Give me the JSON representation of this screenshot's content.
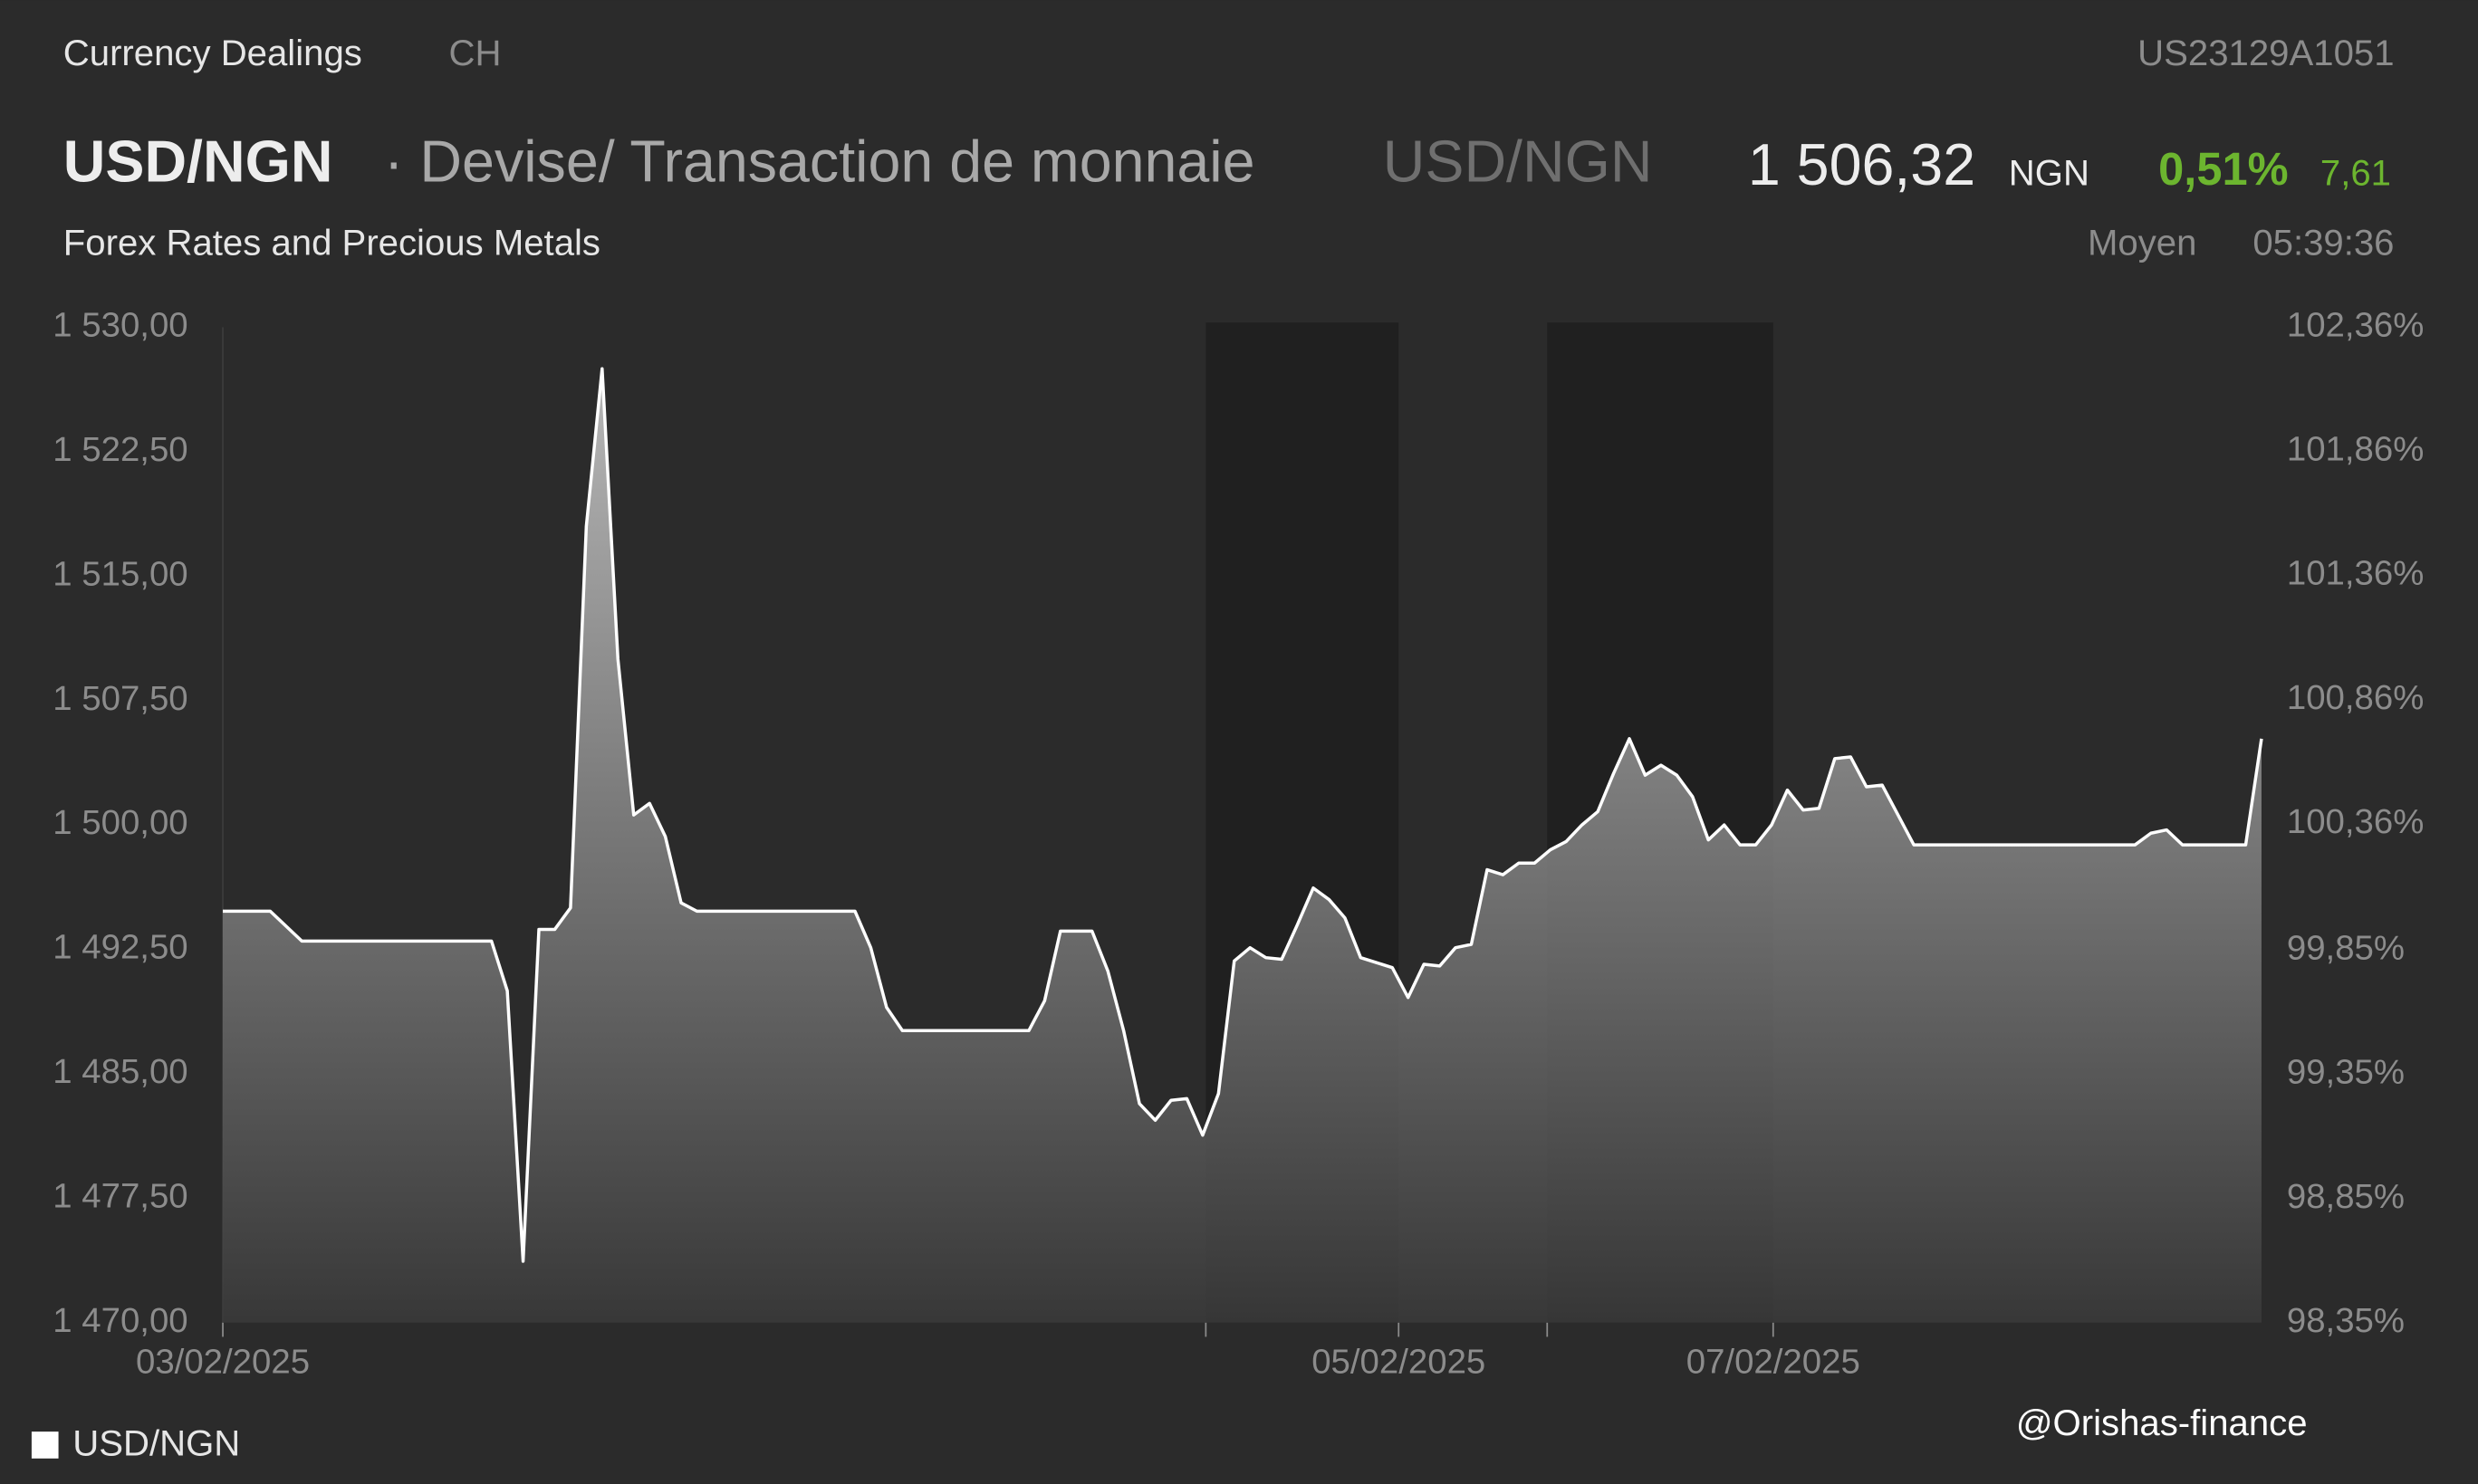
{
  "header": {
    "section": "Currency Dealings",
    "country": "CH",
    "isin": "US23129A1051",
    "symbol": "USD/NGN",
    "description": "· Devise/ Transaction de monnaie",
    "symbol_alt": "USD/NGN",
    "price": "1 506,32",
    "currency": "NGN",
    "change_pct": "0,51%",
    "change": "7,61",
    "subtitle": "Forex Rates and Precious Metals",
    "price_type": "Moyen",
    "time": "05:39:36"
  },
  "watermark": "@Orishas-finance",
  "chart_data": {
    "type": "area",
    "series": [
      {
        "name": "USD/NGN",
        "color": "#ffffff",
        "values": [
          1494.8,
          1494.8,
          1494.8,
          1494.8,
          1493.9,
          1493.0,
          1493.0,
          1493.0,
          1493.0,
          1493.0,
          1493.0,
          1493.0,
          1493.0,
          1493.0,
          1493.0,
          1493.0,
          1493.0,
          1493.0,
          1490.0,
          1473.7,
          1493.7,
          1493.7,
          1495.0,
          1518.0,
          1527.5,
          1510.0,
          1500.6,
          1501.3,
          1499.3,
          1495.3,
          1494.8,
          1494.8,
          1494.8,
          1494.8,
          1494.8,
          1494.8,
          1494.8,
          1494.8,
          1494.8,
          1494.8,
          1494.8,
          1492.6,
          1489.0,
          1487.6,
          1487.6,
          1487.6,
          1487.6,
          1487.6,
          1487.6,
          1487.6,
          1487.6,
          1487.6,
          1489.4,
          1493.6,
          1493.6,
          1493.6,
          1491.2,
          1487.6,
          1483.2,
          1482.2,
          1483.4,
          1483.5,
          1481.3,
          1483.8,
          1491.8,
          1492.6,
          1492.0,
          1491.9,
          1494.0,
          1496.2,
          1495.5,
          1494.4,
          1492.0,
          1491.7,
          1491.4,
          1489.6,
          1491.6,
          1491.5,
          1492.6,
          1492.8,
          1497.3,
          1497.0,
          1497.7,
          1497.7,
          1498.5,
          1499.0,
          1500.0,
          1500.8,
          1503.1,
          1505.2,
          1503.0,
          1503.6,
          1503.0,
          1501.7,
          1499.1,
          1500.0,
          1498.8,
          1498.8,
          1500.0,
          1502.1,
          1500.9,
          1501.0,
          1504.0,
          1504.1,
          1502.3,
          1502.4,
          1500.6,
          1498.8,
          1498.8,
          1498.8,
          1498.8,
          1498.8,
          1498.8,
          1498.8,
          1498.8,
          1498.8,
          1498.8,
          1498.8,
          1498.8,
          1498.8,
          1498.8,
          1498.8,
          1499.5,
          1499.7,
          1498.8,
          1498.8,
          1498.8,
          1498.8,
          1498.8,
          1505.2
        ]
      }
    ],
    "xlim": [
      0,
      129
    ],
    "xticks": [
      0,
      62.2,
      74.4,
      83.8,
      98.1
    ],
    "xtick_labels": [
      "03/02/2025",
      null,
      "05/02/2025",
      null,
      "07/02/2025"
    ],
    "shaded": [
      [
        62.2,
        74.4
      ],
      [
        83.8,
        98.1
      ]
    ],
    "ylim": [
      1470,
      1530
    ],
    "yticks": [
      {
        "value": 1470,
        "label": "1 470,00"
      },
      {
        "value": 1477.5,
        "label": "1 477,50"
      },
      {
        "value": 1485,
        "label": "1 485,00"
      },
      {
        "value": 1492.5,
        "label": "1 492,50"
      },
      {
        "value": 1500,
        "label": "1 500,00"
      },
      {
        "value": 1507.5,
        "label": "1 507,50"
      },
      {
        "value": 1515,
        "label": "1 515,00"
      },
      {
        "value": 1522.5,
        "label": "1 522,50"
      },
      {
        "value": 1530,
        "label": "1 530,00"
      }
    ],
    "y2lim": [
      98.35,
      102.36
    ],
    "y2ticks": [
      {
        "value": 98.35,
        "label": "98,35%"
      },
      {
        "value": 98.85,
        "label": "98,85%"
      },
      {
        "value": 99.35,
        "label": "99,35%"
      },
      {
        "value": 99.85,
        "label": "99,85%"
      },
      {
        "value": 100.36,
        "label": "100,36%"
      },
      {
        "value": 100.86,
        "label": "100,86%"
      },
      {
        "value": 101.36,
        "label": "101,36%"
      },
      {
        "value": 101.86,
        "label": "101,86%"
      },
      {
        "value": 102.36,
        "label": "102,36%"
      }
    ],
    "grid": false
  }
}
